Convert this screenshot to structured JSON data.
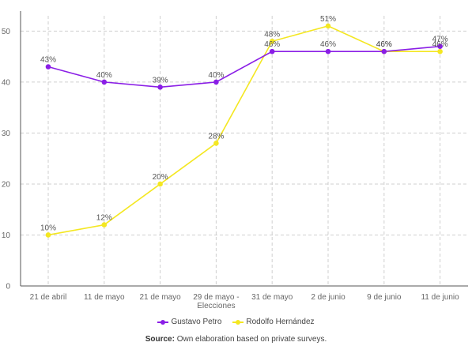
{
  "chart_data": {
    "type": "line",
    "categories": [
      "21 de abril",
      "11 de mayo",
      "21 de mayo",
      "29 de mayo - Elecciones",
      "31 de mayo",
      "2 de junio",
      "9 de junio",
      "11 de junio"
    ],
    "category_lines": [
      [
        "21 de abril"
      ],
      [
        "11 de mayo"
      ],
      [
        "21 de mayo"
      ],
      [
        "29 de mayo -",
        "Elecciones"
      ],
      [
        "31 de mayo"
      ],
      [
        "2 de junio"
      ],
      [
        "9 de junio"
      ],
      [
        "11 de junio"
      ]
    ],
    "series": [
      {
        "name": "Gustavo Petro",
        "color": "#8a1ee6",
        "values": [
          43,
          40,
          39,
          40,
          46,
          46,
          46,
          47
        ],
        "labels": [
          "43%",
          "40%",
          "39%",
          "40%",
          "46%",
          "46%",
          "46%",
          "47%"
        ]
      },
      {
        "name": "Rodolfo Hernández",
        "color": "#f4e721",
        "values": [
          10,
          12,
          20,
          28,
          48,
          51,
          46,
          46
        ],
        "labels": [
          "10%",
          "12%",
          "20%",
          "28%",
          "48%",
          "51%",
          "46%",
          "46%"
        ]
      }
    ],
    "ylim": [
      0,
      53
    ],
    "yticks": [
      0,
      10,
      20,
      30,
      40,
      50
    ],
    "grid": true,
    "legend_position": "bottom"
  },
  "source": {
    "label": "Source:",
    "text": " Own elaboration based on private surveys."
  }
}
